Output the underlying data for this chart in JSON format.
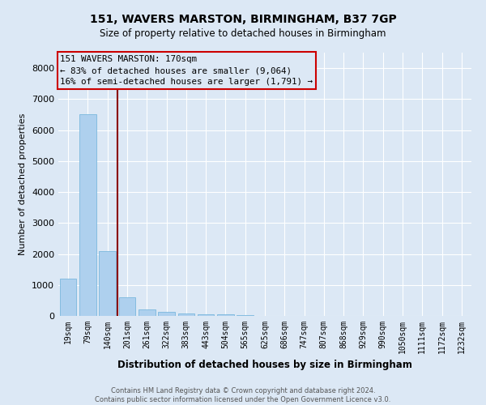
{
  "title": "151, WAVERS MARSTON, BIRMINGHAM, B37 7GP",
  "subtitle": "Size of property relative to detached houses in Birmingham",
  "xlabel": "Distribution of detached houses by size in Birmingham",
  "ylabel": "Number of detached properties",
  "categories": [
    "19sqm",
    "79sqm",
    "140sqm",
    "201sqm",
    "261sqm",
    "322sqm",
    "383sqm",
    "443sqm",
    "504sqm",
    "565sqm",
    "625sqm",
    "686sqm",
    "747sqm",
    "807sqm",
    "868sqm",
    "929sqm",
    "990sqm",
    "1050sqm",
    "1111sqm",
    "1172sqm",
    "1232sqm"
  ],
  "values": [
    1200,
    6500,
    2100,
    600,
    220,
    120,
    80,
    55,
    40,
    25,
    8,
    4,
    2,
    1,
    1,
    0,
    0,
    0,
    0,
    0,
    0
  ],
  "bar_color": "#aed0ee",
  "bar_edge_color": "#7ab8dd",
  "vline_color": "#8b0000",
  "annotation_text_line1": "151 WAVERS MARSTON: 170sqm",
  "annotation_text_line2": "← 83% of detached houses are smaller (9,064)",
  "annotation_text_line3": "16% of semi-detached houses are larger (1,791) →",
  "annotation_box_color": "#cc0000",
  "bg_color": "#dce8f5",
  "plot_bg_color": "#dce8f5",
  "grid_color": "#ffffff",
  "footer_line1": "Contains HM Land Registry data © Crown copyright and database right 2024.",
  "footer_line2": "Contains public sector information licensed under the Open Government Licence v3.0.",
  "ylim": [
    0,
    8500
  ],
  "yticks": [
    0,
    1000,
    2000,
    3000,
    4000,
    5000,
    6000,
    7000,
    8000
  ]
}
